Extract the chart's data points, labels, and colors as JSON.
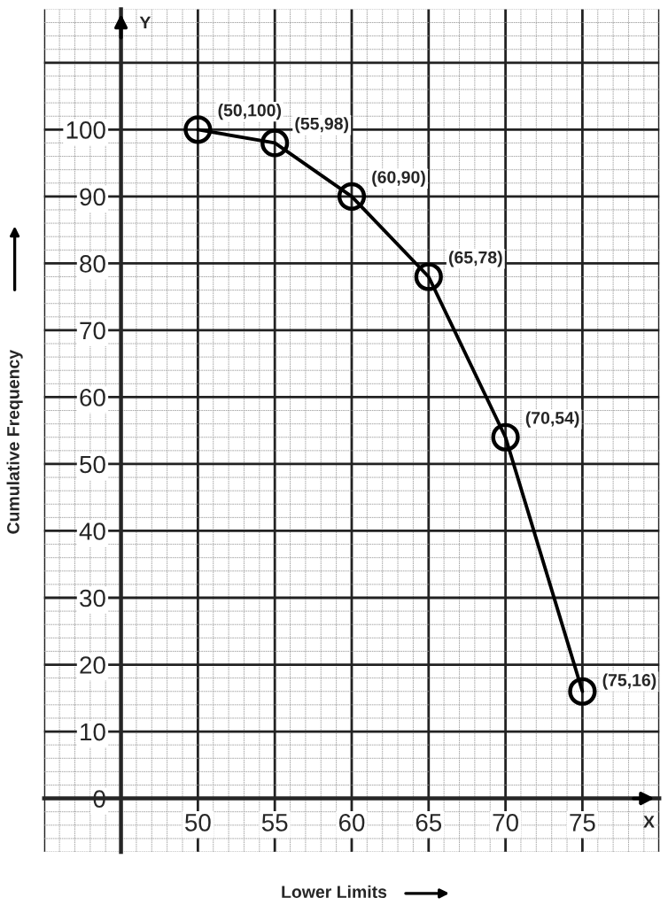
{
  "chart_data": {
    "type": "line",
    "xlabel": "Lower Limits",
    "ylabel": "Cumulative Frequency",
    "x": [
      50,
      55,
      60,
      65,
      70,
      75
    ],
    "series": [
      {
        "color": "#000000",
        "values": [
          100,
          98,
          90,
          78,
          54,
          16
        ]
      }
    ],
    "marker": "circle",
    "line_style": "solid",
    "grid": true,
    "xlim": [
      40,
      80
    ],
    "ylim": [
      -8,
      118
    ],
    "xticks": [
      50,
      55,
      60,
      65,
      70,
      75
    ],
    "yticks": [
      0,
      10,
      20,
      30,
      40,
      50,
      60,
      70,
      80,
      90,
      100
    ],
    "annotations": [
      {
        "text": "(50,100)",
        "x": 50,
        "y": 100
      },
      {
        "text": "(55,98)",
        "x": 55,
        "y": 98
      },
      {
        "text": "(60,90)",
        "x": 60,
        "y": 90
      },
      {
        "text": "(65,78)",
        "x": 65,
        "y": 78
      },
      {
        "text": "(70,54)",
        "x": 70,
        "y": 54
      },
      {
        "text": "(75,16)",
        "x": 75,
        "y": 16
      },
      "X",
      "Y"
    ]
  }
}
